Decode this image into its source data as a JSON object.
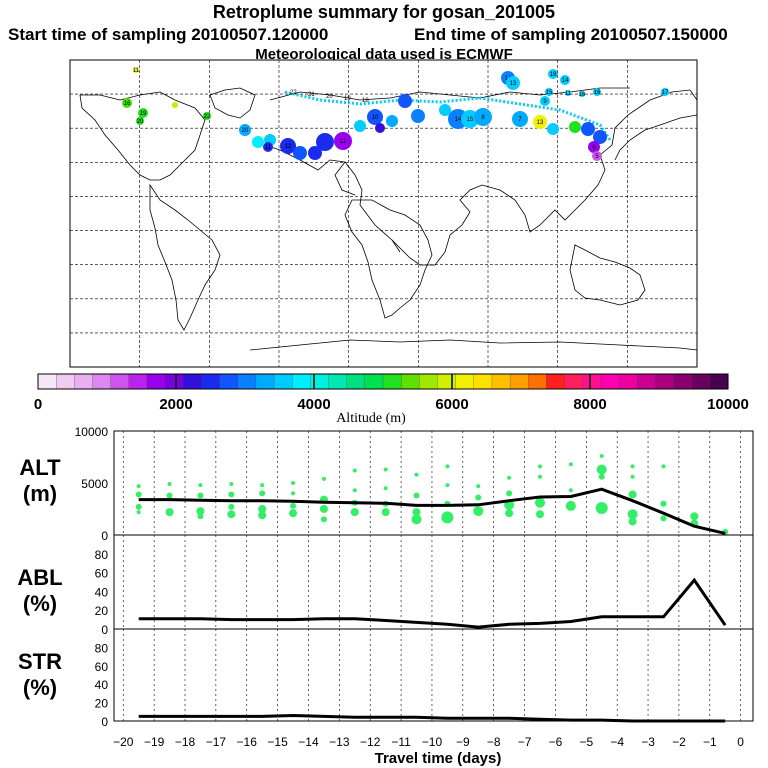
{
  "title": "Retroplume summary for gosan_201005",
  "start_text": "Start time of sampling 20100507.120000",
  "end_text": "End time of sampling 20100507.150000",
  "met_text": "Meteorological data used is ECMWF",
  "colorbar": {
    "label": "Altitude  (m)",
    "min": 0,
    "max": 10000,
    "ticks": [
      "0",
      "2000",
      "4000",
      "6000",
      "8000",
      "10000"
    ],
    "colors": [
      "#f7e6f7",
      "#f0ccf0",
      "#e8b0f0",
      "#dd88ee",
      "#cc55ee",
      "#bb22ee",
      "#9900ee",
      "#7700dd",
      "#3311dd",
      "#1a2aee",
      "#1155ff",
      "#0a80ff",
      "#00aaff",
      "#00ccff",
      "#00eeff",
      "#00f0e0",
      "#00e8b0",
      "#00e080",
      "#00e050",
      "#20e020",
      "#60e000",
      "#a0e800",
      "#d0f000",
      "#f0f000",
      "#ffe000",
      "#ffc000",
      "#ffa000",
      "#ff7000",
      "#ff2020",
      "#ff2060",
      "#ff1090",
      "#ff00b0",
      "#ee00a0",
      "#cc0090",
      "#aa0080",
      "#880070",
      "#6a0060",
      "#4a0050"
    ]
  },
  "map": {
    "points": [
      {
        "x": 136,
        "y": 70,
        "r": 3,
        "color": "#e8f000",
        "label": "11"
      },
      {
        "x": 127,
        "y": 103,
        "r": 5,
        "color": "#40e000",
        "label": "16"
      },
      {
        "x": 143,
        "y": 113,
        "r": 5,
        "color": "#20e020",
        "label": "19"
      },
      {
        "x": 140,
        "y": 121,
        "r": 4,
        "color": "#20e020",
        "label": "20"
      },
      {
        "x": 175,
        "y": 105,
        "r": 3,
        "color": "#c0f000",
        "label": ""
      },
      {
        "x": 207,
        "y": 116,
        "r": 4,
        "color": "#20e020",
        "label": "22"
      },
      {
        "x": 245,
        "y": 130,
        "r": 6,
        "color": "#00aaff",
        "label": "20"
      },
      {
        "x": 258,
        "y": 142,
        "r": 6,
        "color": "#00eeff",
        "label": ""
      },
      {
        "x": 270,
        "y": 140,
        "r": 6,
        "color": "#00ccff",
        "label": ""
      },
      {
        "x": 268,
        "y": 147,
        "r": 5,
        "color": "#1a2aee",
        "label": "11"
      },
      {
        "x": 288,
        "y": 146,
        "r": 8,
        "color": "#1a2aee",
        "label": "12"
      },
      {
        "x": 300,
        "y": 153,
        "r": 7,
        "color": "#1155ff",
        "label": ""
      },
      {
        "x": 315,
        "y": 153,
        "r": 7,
        "color": "#1a2aee",
        "label": ""
      },
      {
        "x": 325,
        "y": 142,
        "r": 9,
        "color": "#1a2aee",
        "label": ""
      },
      {
        "x": 343,
        "y": 141,
        "r": 9,
        "color": "#9900ee",
        "label": "11"
      },
      {
        "x": 360,
        "y": 126,
        "r": 6,
        "color": "#00ccff",
        "label": ""
      },
      {
        "x": 375,
        "y": 117,
        "r": 8,
        "color": "#1155ff",
        "label": "10"
      },
      {
        "x": 380,
        "y": 128,
        "r": 5,
        "color": "#3311dd",
        "label": ""
      },
      {
        "x": 392,
        "y": 121,
        "r": 6,
        "color": "#00aaff",
        "label": ""
      },
      {
        "x": 405,
        "y": 101,
        "r": 7,
        "color": "#1155ff",
        "label": ""
      },
      {
        "x": 418,
        "y": 116,
        "r": 7,
        "color": "#0a80ff",
        "label": ""
      },
      {
        "x": 445,
        "y": 110,
        "r": 6,
        "color": "#00ccff",
        "label": ""
      },
      {
        "x": 458,
        "y": 119,
        "r": 10,
        "color": "#0a80ff",
        "label": "14"
      },
      {
        "x": 470,
        "y": 119,
        "r": 9,
        "color": "#00ccff",
        "label": "15"
      },
      {
        "x": 483,
        "y": 117,
        "r": 9,
        "color": "#00aaff",
        "label": "8"
      },
      {
        "x": 508,
        "y": 78,
        "r": 7,
        "color": "#0a80ff",
        "label": "14"
      },
      {
        "x": 513,
        "y": 83,
        "r": 7,
        "color": "#00ccff",
        "label": "13"
      },
      {
        "x": 520,
        "y": 119,
        "r": 8,
        "color": "#00aaff",
        "label": "7"
      },
      {
        "x": 545,
        "y": 101,
        "r": 5,
        "color": "#00ccff",
        "label": "9"
      },
      {
        "x": 553,
        "y": 74,
        "r": 5,
        "color": "#00ccff",
        "label": "19"
      },
      {
        "x": 565,
        "y": 80,
        "r": 5,
        "color": "#00ccff",
        "label": "14"
      },
      {
        "x": 549,
        "y": 92,
        "r": 4,
        "color": "#00ccff",
        "label": "15"
      },
      {
        "x": 568,
        "y": 93,
        "r": 3,
        "color": "#00ccff",
        "label": "11"
      },
      {
        "x": 582,
        "y": 94,
        "r": 3,
        "color": "#00ccff",
        "label": "16"
      },
      {
        "x": 597,
        "y": 92,
        "r": 4,
        "color": "#00ccff",
        "label": "16"
      },
      {
        "x": 665,
        "y": 92,
        "r": 4,
        "color": "#00ccff",
        "label": "17"
      },
      {
        "x": 540,
        "y": 122,
        "r": 7,
        "color": "#f0f000",
        "label": "13"
      },
      {
        "x": 553,
        "y": 129,
        "r": 6,
        "color": "#00ccff",
        "label": ""
      },
      {
        "x": 575,
        "y": 127,
        "r": 6,
        "color": "#20e020",
        "label": ""
      },
      {
        "x": 588,
        "y": 129,
        "r": 7,
        "color": "#1155ff",
        "label": ""
      },
      {
        "x": 600,
        "y": 137,
        "r": 7,
        "color": "#1155ff",
        "label": ""
      },
      {
        "x": 594,
        "y": 147,
        "r": 6,
        "color": "#9900ee",
        "label": "6"
      },
      {
        "x": 597,
        "y": 156,
        "r": 5,
        "color": "#cc55ee",
        "label": "5"
      }
    ],
    "track_labels": [
      "22",
      "21",
      "20",
      "19",
      "18"
    ]
  },
  "alt": {
    "label_line1": "ALT",
    "label_line2": "(m)",
    "ymax": 10000,
    "ticks": [
      "10000",
      "5000",
      "0"
    ],
    "line_x": [
      -19.5,
      -18.5,
      -17.5,
      -16.5,
      -15.5,
      -14.5,
      -13.5,
      -12.5,
      -11.5,
      -10.5,
      -9.5,
      -8.5,
      -7.5,
      -6.5,
      -5.5,
      -4.5,
      -3.5,
      -2.5,
      -1.5,
      -0.5
    ],
    "line_y": [
      3400,
      3400,
      3350,
      3300,
      3300,
      3250,
      3150,
      3100,
      3050,
      2850,
      2850,
      2900,
      3300,
      3650,
      3700,
      4400,
      3300,
      2100,
      850,
      150
    ],
    "dots": [
      {
        "x": -19.5,
        "y": 4700,
        "r": 2
      },
      {
        "x": -19.5,
        "y": 3900,
        "r": 3
      },
      {
        "x": -19.5,
        "y": 2700,
        "r": 3
      },
      {
        "x": -19.5,
        "y": 2200,
        "r": 2
      },
      {
        "x": -18.5,
        "y": 4900,
        "r": 2
      },
      {
        "x": -18.5,
        "y": 3800,
        "r": 3
      },
      {
        "x": -18.5,
        "y": 2200,
        "r": 4
      },
      {
        "x": -17.5,
        "y": 4800,
        "r": 2
      },
      {
        "x": -17.5,
        "y": 3800,
        "r": 3
      },
      {
        "x": -17.5,
        "y": 2300,
        "r": 4
      },
      {
        "x": -17.5,
        "y": 1800,
        "r": 3
      },
      {
        "x": -16.5,
        "y": 4900,
        "r": 2
      },
      {
        "x": -16.5,
        "y": 3900,
        "r": 3
      },
      {
        "x": -16.5,
        "y": 2700,
        "r": 3
      },
      {
        "x": -16.5,
        "y": 2000,
        "r": 4
      },
      {
        "x": -15.5,
        "y": 4800,
        "r": 2
      },
      {
        "x": -15.5,
        "y": 4000,
        "r": 3
      },
      {
        "x": -15.5,
        "y": 2500,
        "r": 4
      },
      {
        "x": -15.5,
        "y": 1900,
        "r": 4
      },
      {
        "x": -14.5,
        "y": 5000,
        "r": 2
      },
      {
        "x": -14.5,
        "y": 4000,
        "r": 2
      },
      {
        "x": -14.5,
        "y": 2800,
        "r": 3
      },
      {
        "x": -14.5,
        "y": 2100,
        "r": 4
      },
      {
        "x": -13.5,
        "y": 5400,
        "r": 2
      },
      {
        "x": -13.5,
        "y": 3400,
        "r": 4
      },
      {
        "x": -13.5,
        "y": 2500,
        "r": 4
      },
      {
        "x": -13.5,
        "y": 1500,
        "r": 3
      },
      {
        "x": -12.5,
        "y": 6200,
        "r": 2
      },
      {
        "x": -12.5,
        "y": 4300,
        "r": 2
      },
      {
        "x": -12.5,
        "y": 3100,
        "r": 3
      },
      {
        "x": -12.5,
        "y": 2200,
        "r": 4
      },
      {
        "x": -11.5,
        "y": 6300,
        "r": 2
      },
      {
        "x": -11.5,
        "y": 4500,
        "r": 2
      },
      {
        "x": -11.5,
        "y": 3000,
        "r": 3
      },
      {
        "x": -11.5,
        "y": 2200,
        "r": 4
      },
      {
        "x": -10.5,
        "y": 5800,
        "r": 2
      },
      {
        "x": -10.5,
        "y": 3800,
        "r": 3
      },
      {
        "x": -10.5,
        "y": 2200,
        "r": 4
      },
      {
        "x": -10.5,
        "y": 1500,
        "r": 5
      },
      {
        "x": -9.5,
        "y": 6600,
        "r": 2
      },
      {
        "x": -9.5,
        "y": 4800,
        "r": 2
      },
      {
        "x": -9.5,
        "y": 3000,
        "r": 3
      },
      {
        "x": -9.5,
        "y": 1700,
        "r": 6
      },
      {
        "x": -8.5,
        "y": 4700,
        "r": 2
      },
      {
        "x": -8.5,
        "y": 3600,
        "r": 3
      },
      {
        "x": -8.5,
        "y": 2300,
        "r": 5
      },
      {
        "x": -7.5,
        "y": 5500,
        "r": 2
      },
      {
        "x": -7.5,
        "y": 4000,
        "r": 3
      },
      {
        "x": -7.5,
        "y": 2900,
        "r": 5
      },
      {
        "x": -7.5,
        "y": 2100,
        "r": 4
      },
      {
        "x": -6.5,
        "y": 6600,
        "r": 2
      },
      {
        "x": -6.5,
        "y": 5600,
        "r": 2
      },
      {
        "x": -6.5,
        "y": 3100,
        "r": 5
      },
      {
        "x": -6.5,
        "y": 2000,
        "r": 4
      },
      {
        "x": -5.5,
        "y": 6800,
        "r": 2
      },
      {
        "x": -5.5,
        "y": 4300,
        "r": 2
      },
      {
        "x": -5.5,
        "y": 2800,
        "r": 5
      },
      {
        "x": -4.5,
        "y": 7600,
        "r": 2
      },
      {
        "x": -4.5,
        "y": 6300,
        "r": 5
      },
      {
        "x": -4.5,
        "y": 5600,
        "r": 3
      },
      {
        "x": -4.5,
        "y": 2600,
        "r": 6
      },
      {
        "x": -3.5,
        "y": 6600,
        "r": 2
      },
      {
        "x": -3.5,
        "y": 5600,
        "r": 2
      },
      {
        "x": -3.5,
        "y": 3900,
        "r": 4
      },
      {
        "x": -3.5,
        "y": 2000,
        "r": 5
      },
      {
        "x": -3.5,
        "y": 1300,
        "r": 4
      },
      {
        "x": -2.5,
        "y": 6600,
        "r": 2
      },
      {
        "x": -2.5,
        "y": 3000,
        "r": 3
      },
      {
        "x": -2.5,
        "y": 1600,
        "r": 3
      },
      {
        "x": -1.5,
        "y": 1800,
        "r": 4
      },
      {
        "x": -1.5,
        "y": 1100,
        "r": 4
      },
      {
        "x": -0.5,
        "y": 300,
        "r": 3
      }
    ]
  },
  "abl": {
    "label_line1": "ABL",
    "label_line2": "(%)",
    "ymax": 100,
    "ticks": [
      "80",
      "60",
      "40",
      "20",
      "0"
    ],
    "line_x": [
      -19.5,
      -18.5,
      -17.5,
      -16.5,
      -15.5,
      -14.5,
      -13.5,
      -12.5,
      -11.5,
      -10.5,
      -9.5,
      -8.5,
      -7.5,
      -6.5,
      -5.5,
      -4.5,
      -3.5,
      -2.5,
      -1.5,
      -0.5
    ],
    "line_y": [
      11,
      11,
      11,
      10,
      10,
      10,
      11,
      11,
      9,
      7,
      5,
      2,
      5,
      6,
      8,
      13,
      13,
      13,
      52,
      4
    ]
  },
  "str": {
    "label_line1": "STR",
    "label_line2": "(%)",
    "ymax": 100,
    "ticks": [
      "80",
      "60",
      "40",
      "20",
      "0"
    ],
    "line_x": [
      -19.5,
      -18.5,
      -17.5,
      -16.5,
      -15.5,
      -14.5,
      -13.5,
      -12.5,
      -11.5,
      -10.5,
      -9.5,
      -8.5,
      -7.5,
      -6.5,
      -5.5,
      -4.5,
      -3.5,
      -2.5,
      -1.5,
      -0.5
    ],
    "line_y": [
      5,
      5,
      5,
      5,
      5,
      6,
      5,
      4,
      4,
      4,
      3,
      3,
      3,
      2,
      1,
      1,
      0,
      0,
      0,
      0
    ]
  },
  "xaxis": {
    "label": "Travel time (days)",
    "ticks": [
      "−20",
      "−19",
      "−18",
      "−17",
      "−16",
      "−15",
      "−14",
      "−13",
      "−12",
      "−11",
      "−10",
      "−9",
      "−8",
      "−7",
      "−6",
      "−5",
      "−4",
      "−3",
      "−2",
      "−1",
      "0"
    ]
  },
  "style": {
    "dot_color": "#33ee66",
    "line_color": "#000000"
  }
}
